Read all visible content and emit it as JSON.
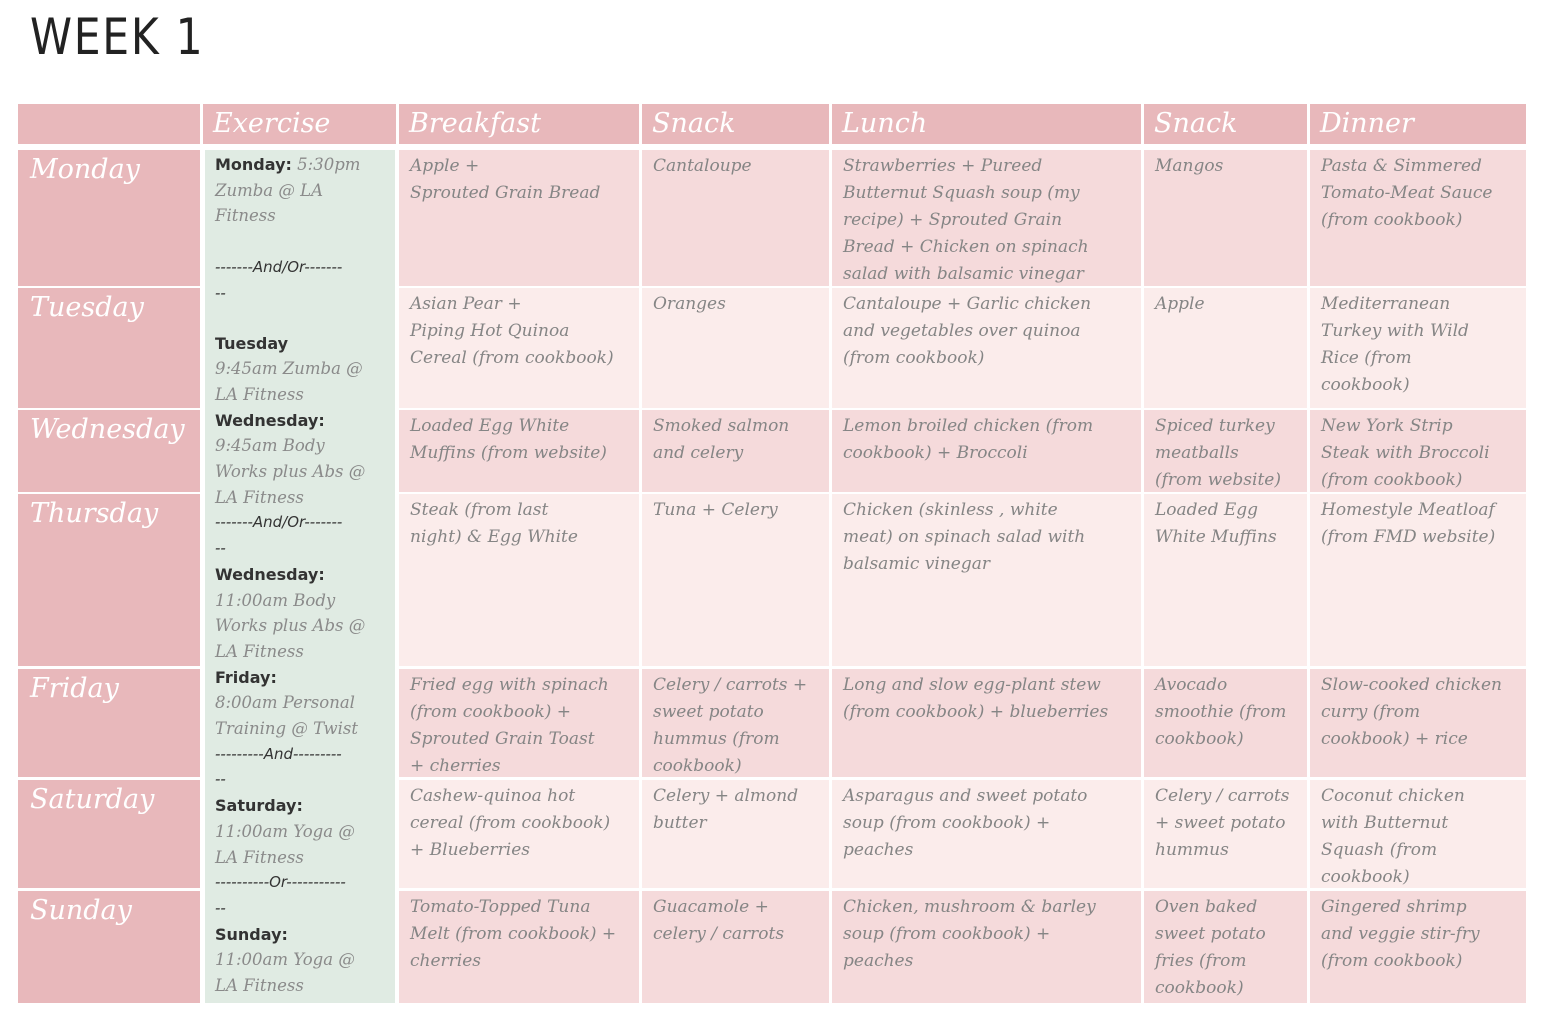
{
  "title": "WEEK 1",
  "headers": {
    "exercise": "Exercise",
    "breakfast": "Breakfast",
    "snack1": "Snack",
    "lunch": "Lunch",
    "snack2": "Snack",
    "dinner": "Dinner"
  },
  "days": {
    "monday": "Monday",
    "tuesday": "Tuesday",
    "wednesday": "Wednesday",
    "thursday": "Thursday",
    "friday": "Friday",
    "saturday": "Saturday",
    "sunday": "Sunday"
  },
  "exercise": {
    "mon_label": "Monday:",
    "mon_text1": " 5:30pm",
    "mon_text2": "Zumba @ LA",
    "mon_text3": "Fitness",
    "sep1a": "-------And/Or-------",
    "sep1b": "--",
    "tue_label": "Tuesday",
    "tue_text1": "9:45am Zumba @",
    "tue_text2": "LA Fitness",
    "wed_label": "Wednesday:",
    "wed_text1": "9:45am Body",
    "wed_text2": "Works plus Abs @",
    "wed_text3": "LA Fitness",
    "sep2a": "-------And/Or-------",
    "sep2b": "--",
    "wed2_label": "Wednesday:",
    "wed2_text1": "11:00am Body",
    "wed2_text2": "Works plus Abs @",
    "wed2_text3": "LA Fitness",
    "fri_label": "Friday:",
    "fri_text1": "8:00am Personal",
    "fri_text2": "Training @ Twist",
    "sep3a": "---------And---------",
    "sep3b": "--",
    "sat_label": "Saturday:",
    "sat_text1": "11:00am Yoga @",
    "sat_text2": "LA Fitness",
    "sep4a": "----------Or-----------",
    "sep4b": "--",
    "sun_label": "Sunday:",
    "sun_text1": "11:00am Yoga @",
    "sun_text2": "LA Fitness"
  },
  "meals": {
    "monday": {
      "breakfast": [
        "Apple +",
        "Sprouted Grain Bread"
      ],
      "snack1": [
        "Cantaloupe"
      ],
      "lunch": [
        "Strawberries + Pureed",
        "Butternut Squash soup (my",
        "recipe) + Sprouted Grain",
        "Bread + Chicken on spinach",
        "salad with balsamic vinegar"
      ],
      "snack2": [
        "Mangos"
      ],
      "dinner": [
        "Pasta & Simmered",
        "Tomato-Meat Sauce",
        "(from cookbook)"
      ]
    },
    "tuesday": {
      "breakfast": [
        "Asian Pear +",
        "Piping Hot Quinoa",
        "Cereal (from cookbook)"
      ],
      "snack1": [
        "Oranges"
      ],
      "lunch": [
        "Cantaloupe + Garlic chicken",
        "and vegetables over quinoa",
        "(from cookbook)"
      ],
      "snack2": [
        "Apple"
      ],
      "dinner": [
        "Mediterranean",
        "Turkey with Wild",
        "Rice (from",
        "cookbook)"
      ]
    },
    "wednesday": {
      "breakfast": [
        "Loaded Egg White",
        "Muffins (from website)"
      ],
      "snack1": [
        "Smoked salmon",
        "and celery"
      ],
      "lunch": [
        "Lemon broiled chicken (from",
        "cookbook) + Broccoli"
      ],
      "snack2": [
        "Spiced turkey",
        "meatballs",
        "(from website)"
      ],
      "dinner": [
        "New York Strip",
        "Steak with Broccoli",
        "(from cookbook)"
      ]
    },
    "thursday": {
      "breakfast": [
        "Steak (from last",
        "night) & Egg White"
      ],
      "snack1": [
        "Tuna + Celery"
      ],
      "lunch": [
        "Chicken (skinless , white",
        "meat) on spinach salad with",
        "balsamic vinegar"
      ],
      "snack2": [
        "Loaded Egg",
        "White Muffins"
      ],
      "dinner": [
        "Homestyle Meatloaf",
        "(from FMD website)"
      ]
    },
    "friday": {
      "breakfast": [
        "Fried egg with spinach",
        "(from cookbook) +",
        "Sprouted Grain Toast",
        "+ cherries"
      ],
      "snack1": [
        "Celery / carrots +",
        "sweet potato",
        "hummus (from",
        "cookbook)"
      ],
      "lunch": [
        "Long and slow egg-plant stew",
        "(from cookbook) + blueberries"
      ],
      "snack2": [
        "Avocado",
        "smoothie (from",
        "cookbook)"
      ],
      "dinner": [
        "Slow-cooked chicken",
        "curry (from",
        "cookbook) + rice"
      ]
    },
    "saturday": {
      "breakfast": [
        "Cashew-quinoa hot",
        "cereal (from cookbook)",
        "+ Blueberries"
      ],
      "snack1": [
        "Celery + almond",
        "butter"
      ],
      "lunch": [
        "Asparagus and sweet potato",
        "soup (from cookbook) +",
        "peaches"
      ],
      "snack2": [
        "Celery / carrots",
        "+ sweet potato",
        "hummus"
      ],
      "dinner": [
        "Coconut chicken",
        "with Butternut",
        "Squash (from",
        "cookbook)"
      ]
    },
    "sunday": {
      "breakfast": [
        "Tomato-Topped Tuna",
        "Melt (from cookbook) +",
        "cherries"
      ],
      "snack1": [
        "Guacamole +",
        "celery / carrots"
      ],
      "lunch": [
        "Chicken, mushroom & barley",
        "soup (from cookbook)  +",
        "peaches"
      ],
      "snack2": [
        "Oven baked",
        "sweet potato",
        "fries (from",
        "cookbook)"
      ],
      "dinner": [
        "Gingered shrimp",
        "and veggie stir-fry",
        "(from cookbook)"
      ]
    }
  }
}
